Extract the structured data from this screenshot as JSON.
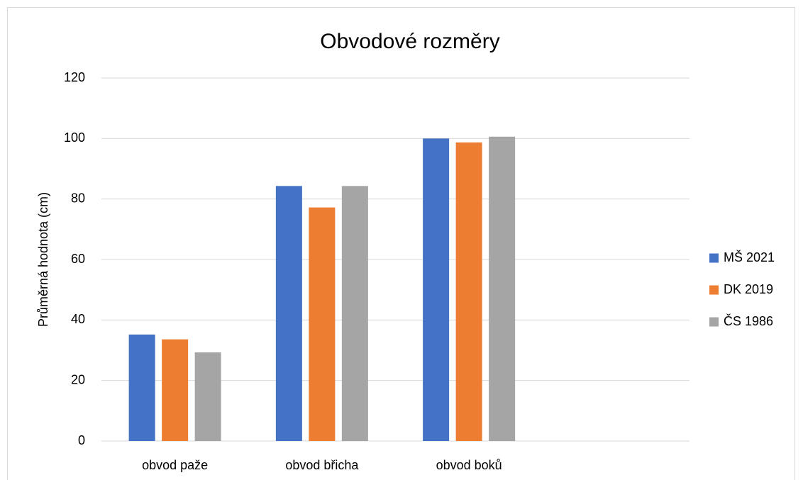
{
  "chart_data": {
    "type": "bar",
    "title": "Obvodové rozměry",
    "y_label": "Průměrná hodnota (cm)",
    "categories": [
      "obvod paže",
      "obvod břicha",
      "obvod boků",
      null
    ],
    "series": [
      {
        "name": "MŠ 2021",
        "color": "#4472c4",
        "values": [
          35.2,
          84.3,
          100,
          null
        ]
      },
      {
        "name": "DK 2019",
        "color": "#ed7d31",
        "values": [
          33.6,
          77.2,
          98.7,
          null
        ]
      },
      {
        "name": "ČS 1986",
        "color": "#a5a5a5",
        "values": [
          29.3,
          84.3,
          100.6,
          null
        ]
      }
    ],
    "ylim": [
      0,
      120
    ],
    "yticks": [
      0,
      20,
      40,
      60,
      80,
      100,
      120
    ],
    "grid": true,
    "legend": "right"
  }
}
